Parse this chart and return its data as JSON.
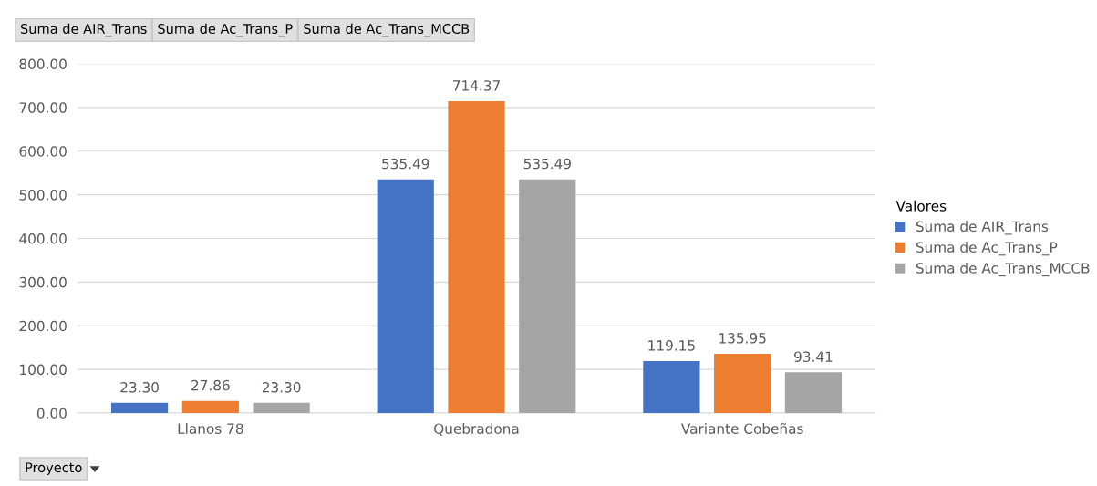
{
  "chart_data": {
    "type": "bar",
    "categories": [
      "Llanos 78",
      "Quebradona",
      "Variante Cobeñas"
    ],
    "series": [
      {
        "name": "Suma de AIR_Trans",
        "color": "#4472c4",
        "values": [
          23.3,
          535.49,
          119.15
        ],
        "value_labels": [
          "23.30",
          "535.49",
          "119.15"
        ]
      },
      {
        "name": "Suma de Ac_Trans_P",
        "color": "#ed7d31",
        "values": [
          27.86,
          714.37,
          135.95
        ],
        "value_labels": [
          "27.86",
          "714.37",
          "135.95"
        ]
      },
      {
        "name": "Suma de Ac_Trans_MCCB",
        "color": "#a5a5a5",
        "values": [
          23.3,
          535.49,
          93.41
        ],
        "value_labels": [
          "23.30",
          "535.49",
          "93.41"
        ]
      }
    ],
    "ylim": [
      0,
      800
    ],
    "yticks": [
      {
        "value": 0,
        "label": "0.00"
      },
      {
        "value": 100,
        "label": "100.00"
      },
      {
        "value": 200,
        "label": "200.00"
      },
      {
        "value": 300,
        "label": "300.00"
      },
      {
        "value": 400,
        "label": "400.00"
      },
      {
        "value": 500,
        "label": "500.00"
      },
      {
        "value": 600,
        "label": "600.00"
      },
      {
        "value": 700,
        "label": "700.00"
      },
      {
        "value": 800,
        "label": "800.00"
      }
    ],
    "grid": "y",
    "legend": "right",
    "legend_title": "Valores",
    "annotations": [
      "Suma de AIR_Trans",
      "Suma de Ac_Trans_P",
      "Suma de Ac_Trans_MCCB",
      "Proyecto"
    ]
  }
}
